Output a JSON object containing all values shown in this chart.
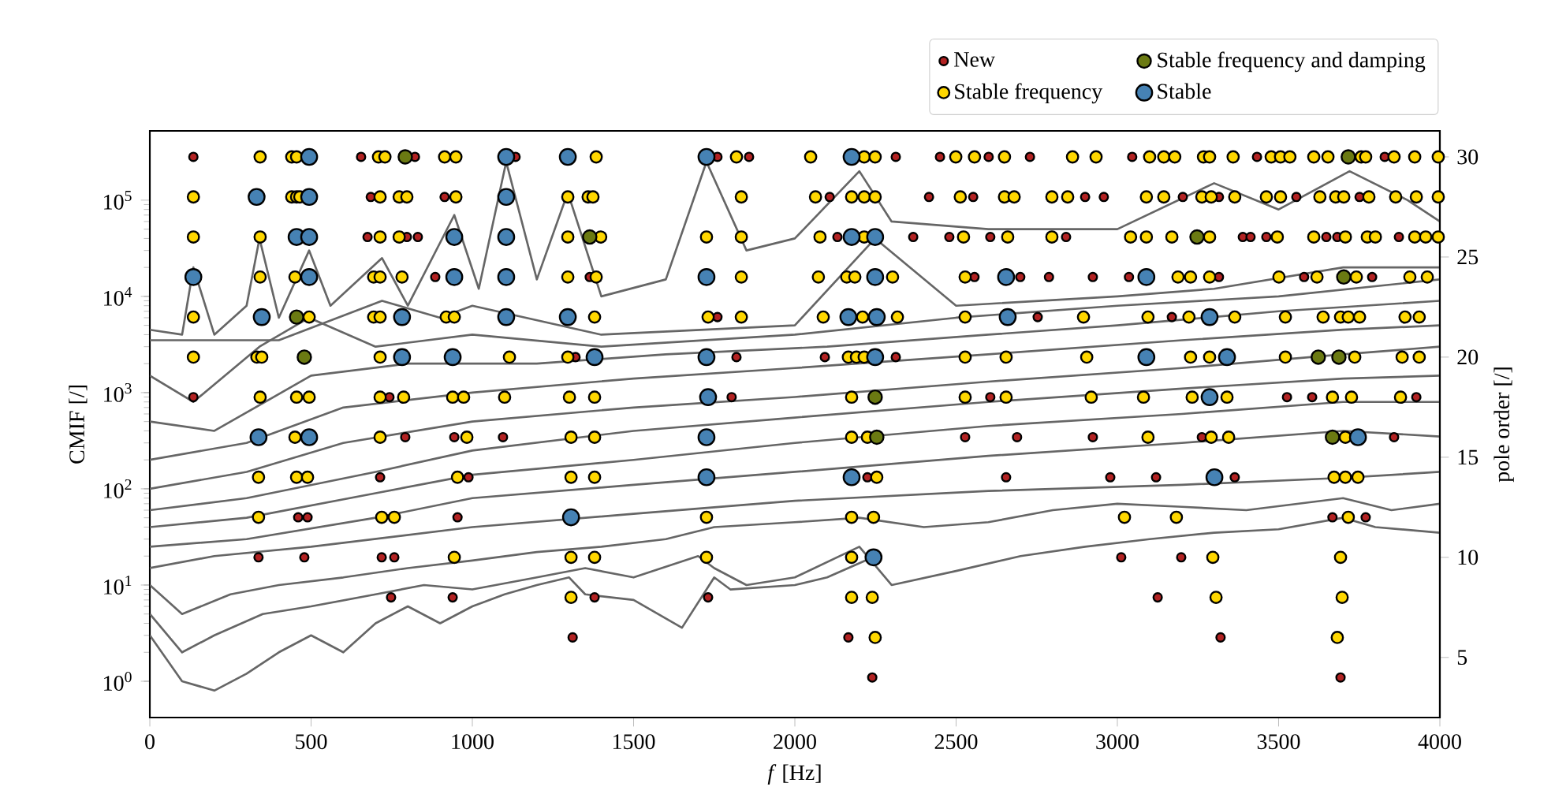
{
  "chart_data": {
    "type": "scatter",
    "xlabel": "*f* [Hz]",
    "ylabel": "CMIF [/]",
    "y2label": "pole order [/]",
    "log": "y",
    "legend": "top right",
    "grid": false,
    "xlim": [
      0,
      4000
    ],
    "xticks": [
      0,
      500,
      1000,
      1500,
      2000,
      2500,
      3000,
      3500,
      4000
    ],
    "ylim": [
      0.42,
      525000
    ],
    "yticks": [
      {
        "value": 1,
        "label": "10$^{0}$"
      },
      {
        "value": 10,
        "label": "10$^{1}$"
      },
      {
        "value": 100,
        "label": "10$^{2}$"
      },
      {
        "value": 1000,
        "label": "10$^{3}$"
      },
      {
        "value": 10000,
        "label": "10$^{4}$"
      },
      {
        "value": 100000,
        "label": "10$^{5}$"
      }
    ],
    "y2lim": [
      2,
      31.3
    ],
    "y2ticks": [
      5,
      10,
      15,
      20,
      25,
      30
    ],
    "series": [
      {
        "type": "line",
        "color": "#666666",
        "line_style": "solid",
        "x": [
          0,
          100,
          135,
          200,
          300,
          340,
          400,
          494,
          560,
          720,
          800,
          944,
          1020,
          1105,
          1200,
          1296,
          1400,
          1600,
          1726,
          1850,
          2000,
          2200,
          2300,
          2600,
          3000,
          3300,
          3500,
          3720,
          3900,
          4000
        ],
        "values": [
          4500,
          4000,
          20000,
          4000,
          8000,
          40000,
          6000,
          30000,
          8000,
          25000,
          8000,
          70000,
          12000,
          250000,
          15000,
          120000,
          10000,
          15000,
          250000,
          30000,
          40000,
          200000,
          60000,
          50000,
          50000,
          150000,
          80000,
          200000,
          100000,
          60000
        ]
      },
      {
        "type": "line",
        "color": "#666666",
        "line_style": "solid",
        "x": [
          0,
          400,
          720,
          900,
          1000,
          1400,
          2000,
          2249,
          2500,
          3000,
          3300,
          3700,
          4000
        ],
        "values": [
          3500,
          3500,
          9000,
          6000,
          8000,
          4000,
          5000,
          40000,
          8000,
          10000,
          12000,
          20000,
          20000
        ]
      },
      {
        "type": "line",
        "color": "#666666",
        "line_style": "solid",
        "x": [
          0,
          135,
          340,
          494,
          700,
          1000,
          1400,
          2000,
          2500,
          3000,
          3500,
          4000
        ],
        "values": [
          1500,
          800,
          3000,
          6000,
          3000,
          4000,
          3000,
          4000,
          6000,
          8000,
          10000,
          15000
        ]
      },
      {
        "type": "line",
        "color": "#666666",
        "line_style": "solid",
        "x": [
          0,
          200,
          500,
          800,
          1200,
          1600,
          2100,
          2600,
          3000,
          3500,
          4000
        ],
        "values": [
          500,
          400,
          1500,
          2000,
          2000,
          2500,
          3000,
          4000,
          5000,
          7000,
          9000
        ]
      },
      {
        "type": "line",
        "color": "#666666",
        "line_style": "solid",
        "x": [
          0,
          300,
          600,
          1000,
          1500,
          2000,
          2600,
          3200,
          3700,
          4000
        ],
        "values": [
          200,
          300,
          700,
          1000,
          1400,
          1800,
          2500,
          3500,
          4500,
          5000
        ]
      },
      {
        "type": "line",
        "color": "#666666",
        "line_style": "solid",
        "x": [
          0,
          300,
          600,
          1000,
          1500,
          2000,
          2600,
          3200,
          3700,
          4000
        ],
        "values": [
          100,
          150,
          300,
          500,
          700,
          900,
          1300,
          1800,
          2500,
          3000
        ]
      },
      {
        "type": "line",
        "color": "#666666",
        "line_style": "solid",
        "x": [
          0,
          300,
          700,
          1000,
          1500,
          2000,
          2600,
          3200,
          3700,
          4000
        ],
        "values": [
          60,
          80,
          150,
          250,
          400,
          550,
          800,
          1100,
          1400,
          1500
        ]
      },
      {
        "type": "line",
        "color": "#666666",
        "line_style": "solid",
        "x": [
          0,
          300,
          700,
          1000,
          1500,
          2000,
          2600,
          3200,
          3700,
          4000
        ],
        "values": [
          40,
          50,
          90,
          140,
          200,
          300,
          450,
          600,
          800,
          800
        ]
      },
      {
        "type": "line",
        "color": "#666666",
        "line_style": "solid",
        "x": [
          0,
          300,
          700,
          1000,
          1500,
          2000,
          2600,
          3200,
          3700,
          4000
        ],
        "values": [
          25,
          30,
          50,
          80,
          110,
          150,
          220,
          300,
          400,
          350
        ]
      },
      {
        "type": "line",
        "color": "#666666",
        "line_style": "solid",
        "x": [
          0,
          200,
          500,
          1000,
          1500,
          2000,
          2600,
          3200,
          3700,
          4000
        ],
        "values": [
          15,
          20,
          25,
          40,
          55,
          75,
          95,
          110,
          130,
          150
        ]
      },
      {
        "type": "line",
        "color": "#666666",
        "line_style": "solid",
        "x": [
          0,
          100,
          250,
          400,
          600,
          800,
          1000,
          1200,
          1400,
          1600,
          1750,
          2000,
          2200,
          2400,
          2600,
          2800,
          3000,
          3200,
          3400,
          3700,
          3850,
          4000
        ],
        "values": [
          10,
          5,
          8,
          10,
          12,
          15,
          18,
          22,
          25,
          30,
          40,
          45,
          50,
          40,
          45,
          60,
          70,
          65,
          60,
          80,
          60,
          70
        ]
      },
      {
        "type": "line",
        "color": "#666666",
        "line_style": "solid",
        "x": [
          0,
          100,
          200,
          350,
          500,
          700,
          850,
          1000,
          1200,
          1350,
          1500,
          1700,
          1750,
          1850,
          2000,
          2200,
          2300,
          2500,
          2700,
          2900,
          3100,
          3300,
          3500,
          3700,
          3800,
          4000
        ],
        "values": [
          5,
          2,
          3,
          5,
          6,
          8,
          10,
          9,
          12,
          15,
          12,
          20,
          15,
          10,
          12,
          25,
          10,
          14,
          20,
          25,
          30,
          35,
          38,
          50,
          40,
          35
        ]
      },
      {
        "type": "line",
        "color": "#666666",
        "line_style": "solid",
        "x": [
          0,
          100,
          200,
          300,
          400,
          500,
          600,
          700,
          800,
          900,
          1000,
          1100,
          1200,
          1300,
          1350,
          1500,
          1650,
          1750,
          1800,
          2000,
          2100,
          2250
        ],
        "values": [
          3,
          1,
          0.8,
          1.2,
          2,
          3,
          2,
          4,
          6,
          4,
          6,
          8,
          10,
          12,
          8,
          7,
          3.6,
          12,
          9,
          10,
          12,
          20
        ]
      },
      {
        "name": "New",
        "color": "#b22222",
        "marker": "circle",
        "axis": "y2",
        "x": [
          135,
          655,
          822,
          1134,
          1760,
          1858,
          2313,
          2450,
          2601,
          2729,
          3046,
          3433,
          3829,
          685,
          914,
          2108,
          2416,
          2553,
          2900,
          2958,
          3203,
          3315,
          3555,
          3751,
          675,
          797,
          831,
          2132,
          2367,
          2479,
          2606,
          2841,
          3389,
          3413,
          3462,
          3648,
          3682,
          3873,
          885,
          1364,
          2557,
          2699,
          2788,
          2924,
          3036,
          3315,
          3579,
          3790,
          1760,
          2753,
          3169,
          1320,
          1819,
          2093,
          2313,
          135,
          743,
          1804,
          2606,
          3526,
          3604,
          3927,
          792,
          944,
          1095,
          2528,
          2689,
          2924,
          3262,
          3858,
          714,
          988,
          2225,
          2655,
          2978,
          3120,
          3364,
          460,
          489,
          954,
          3667,
          3770,
          337,
          479,
          719,
          758,
          3012,
          3198,
          748,
          939,
          1379,
          1731,
          3125,
          1311,
          2166,
          3320,
          2240,
          3692
        ],
        "values": [
          30,
          30,
          30,
          30,
          30,
          30,
          30,
          30,
          30,
          30,
          30,
          30,
          30,
          28,
          28,
          28,
          28,
          28,
          28,
          28,
          28,
          28,
          28,
          28,
          26,
          26,
          26,
          26,
          26,
          26,
          26,
          26,
          26,
          26,
          26,
          26,
          26,
          26,
          24,
          24,
          24,
          24,
          24,
          24,
          24,
          24,
          24,
          24,
          22,
          22,
          22,
          20,
          20,
          20,
          20,
          18,
          18,
          18,
          18,
          18,
          18,
          18,
          16,
          16,
          16,
          16,
          16,
          16,
          16,
          16,
          14,
          14,
          14,
          14,
          14,
          14,
          14,
          12,
          12,
          12,
          12,
          12,
          10,
          10,
          10,
          10,
          10,
          10,
          8,
          8,
          8,
          8,
          8,
          6,
          6,
          6,
          4,
          4
        ]
      },
      {
        "name": "Stable frequency",
        "color": "#ffd700",
        "marker": "circle",
        "axis": "y2",
        "x": [
          342,
          440,
          455,
          709,
          729,
          914,
          949,
          1384,
          1819,
          2049,
          2215,
          2249,
          2499,
          2557,
          2650,
          2861,
          2934,
          3100,
          3144,
          3178,
          3267,
          3286,
          3359,
          3477,
          3506,
          3535,
          3609,
          3653,
          3756,
          3770,
          3858,
          3922,
          3995,
          135,
          440,
          455,
          465,
          714,
          773,
          797,
          949,
          1296,
          1359,
          1374,
          1834,
          2064,
          2176,
          2215,
          2249,
          2513,
          2650,
          2680,
          2797,
          2846,
          3090,
          3144,
          3262,
          3291,
          3364,
          3462,
          3506,
          3628,
          3677,
          3702,
          3780,
          3863,
          3927,
          3995,
          135,
          342,
          714,
          773,
          1296,
          1398,
          1726,
          1834,
          2078,
          2215,
          2523,
          2660,
          2797,
          3041,
          3090,
          3169,
          3286,
          3496,
          3609,
          3707,
          3775,
          3800,
          3922,
          3956,
          3995,
          342,
          450,
          694,
          714,
          782,
          1296,
          1384,
          1834,
          2073,
          2161,
          2186,
          2303,
          2528,
          3188,
          3227,
          3286,
          3501,
          3619,
          3741,
          3907,
          3961,
          135,
          494,
          694,
          714,
          919,
          944,
          1379,
          1731,
          1834,
          2088,
          2210,
          2318,
          2528,
          2895,
          3095,
          3222,
          3364,
          3521,
          3638,
          3692,
          3716,
          3751,
          3892,
          3936,
          135,
          332,
          347,
          714,
          1115,
          1296,
          2166,
          2191,
          2215,
          2528,
          2655,
          2905,
          3227,
          3286,
          3521,
          3736,
          3883,
          3936,
          342,
          455,
          494,
          714,
          787,
          939,
          973,
          1100,
          1301,
          1379,
          2176,
          2528,
          2655,
          2919,
          3081,
          3232,
          3340,
          3667,
          3726,
          3878,
          450,
          714,
          983,
          1306,
          1379,
          2176,
          2225,
          3095,
          3291,
          3345,
          3707,
          337,
          455,
          489,
          954,
          1306,
          1379,
          2254,
          3672,
          3707,
          3746,
          337,
          719,
          758,
          1726,
          2176,
          2244,
          3022,
          3183,
          3716,
          944,
          1306,
          1379,
          1726,
          2176,
          3296,
          3692,
          1306,
          2176,
          2240,
          3306,
          3697,
          2249,
          3682
        ],
        "values": [
          30,
          30,
          30,
          30,
          30,
          30,
          30,
          30,
          30,
          30,
          30,
          30,
          30,
          30,
          30,
          30,
          30,
          30,
          30,
          30,
          30,
          30,
          30,
          30,
          30,
          30,
          30,
          30,
          30,
          30,
          30,
          30,
          30,
          28,
          28,
          28,
          28,
          28,
          28,
          28,
          28,
          28,
          28,
          28,
          28,
          28,
          28,
          28,
          28,
          28,
          28,
          28,
          28,
          28,
          28,
          28,
          28,
          28,
          28,
          28,
          28,
          28,
          28,
          28,
          28,
          28,
          28,
          28,
          26,
          26,
          26,
          26,
          26,
          26,
          26,
          26,
          26,
          26,
          26,
          26,
          26,
          26,
          26,
          26,
          26,
          26,
          26,
          26,
          26,
          26,
          26,
          26,
          26,
          24,
          24,
          24,
          24,
          24,
          24,
          24,
          24,
          24,
          24,
          24,
          24,
          24,
          24,
          24,
          24,
          24,
          24,
          24,
          24,
          24,
          22,
          22,
          22,
          22,
          22,
          22,
          22,
          22,
          22,
          22,
          22,
          22,
          22,
          22,
          22,
          22,
          22,
          22,
          22,
          22,
          22,
          22,
          22,
          22,
          20,
          20,
          20,
          20,
          20,
          20,
          20,
          20,
          20,
          20,
          20,
          20,
          20,
          20,
          20,
          20,
          20,
          20,
          18,
          18,
          18,
          18,
          18,
          18,
          18,
          18,
          18,
          18,
          18,
          18,
          18,
          18,
          18,
          18,
          18,
          18,
          18,
          18,
          16,
          16,
          16,
          16,
          16,
          16,
          16,
          16,
          16,
          16,
          16,
          14,
          14,
          14,
          14,
          14,
          14,
          14,
          14,
          14,
          14,
          12,
          12,
          12,
          12,
          12,
          12,
          12,
          12,
          12,
          10,
          10,
          10,
          10,
          10,
          10,
          10,
          8,
          8,
          8,
          8,
          8,
          6,
          6
        ]
      },
      {
        "name": "Stable frequency and damping",
        "color": "#6b7a12",
        "marker": "circle",
        "axis": "y2",
        "x": [
          792,
          3716,
          1364,
          3247,
          3702,
          455,
          465,
          479,
          3623,
          3687,
          2249,
          2254,
          3667
        ],
        "values": [
          30,
          30,
          26,
          26,
          24,
          22,
          null,
          20,
          20,
          20,
          18,
          16,
          16
        ]
      },
      {
        "name": "Stable",
        "color": "#4682b4",
        "marker": "circle",
        "axis": "y2",
        "x": [
          494,
          1105,
          1296,
          1726,
          2176,
          331,
          494,
          1105,
          455,
          494,
          944,
          1105,
          2176,
          2249,
          135,
          494,
          944,
          1105,
          1726,
          2249,
          2655,
          3090,
          347,
          782,
          1105,
          1296,
          2166,
          2254,
          2660,
          3286,
          782,
          939,
          1379,
          1726,
          2249,
          3090,
          3340,
          1731,
          3286,
          337,
          494,
          1726,
          3746,
          1726,
          2176,
          3301,
          1306,
          2244
        ],
        "values": [
          30,
          30,
          30,
          30,
          30,
          28,
          28,
          28,
          26,
          26,
          26,
          26,
          26,
          26,
          24,
          24,
          24,
          24,
          24,
          24,
          24,
          24,
          22,
          22,
          22,
          22,
          22,
          22,
          22,
          22,
          20,
          20,
          20,
          20,
          20,
          20,
          20,
          18,
          18,
          16,
          16,
          16,
          16,
          14,
          14,
          14,
          12,
          10
        ]
      }
    ]
  }
}
